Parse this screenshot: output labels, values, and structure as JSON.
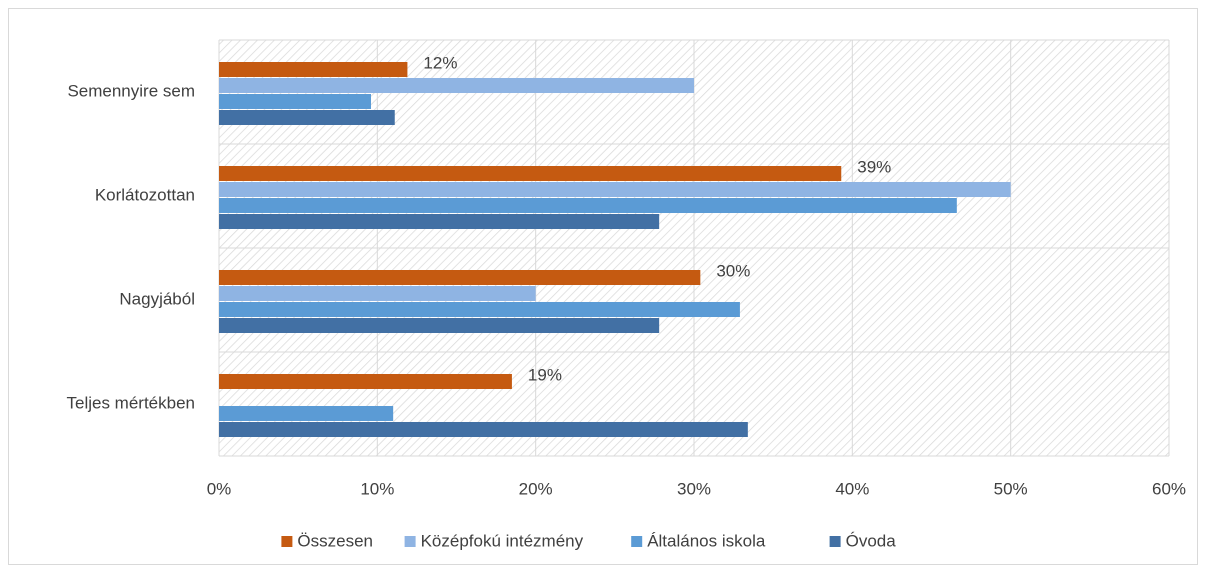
{
  "chart_data": {
    "type": "hbar",
    "categories": [
      "Semennyire sem",
      "Korlátozottan",
      "Nagyjából",
      "Teljes mértékben"
    ],
    "series": [
      {
        "name": "Összesen",
        "color": "#c55a11",
        "values": [
          11.9,
          39.3,
          30.4,
          18.5
        ],
        "value_labels": [
          "12%",
          "39%",
          "30%",
          "19%"
        ]
      },
      {
        "name": "Középfokú intézmény",
        "color": "#8fb4e3",
        "values": [
          30.0,
          50.0,
          20.0,
          0
        ]
      },
      {
        "name": "Általános iskola",
        "color": "#5b9bd5",
        "values": [
          9.6,
          46.6,
          32.9,
          11.0
        ]
      },
      {
        "name": "Óvoda",
        "color": "#4270a4",
        "values": [
          11.1,
          27.8,
          27.8,
          33.4
        ]
      }
    ],
    "xlim": [
      0,
      60
    ],
    "xticks": [
      {
        "value": 0,
        "label": "0%"
      },
      {
        "value": 10,
        "label": "10%"
      },
      {
        "value": 20,
        "label": "20%"
      },
      {
        "value": 30,
        "label": "30%"
      },
      {
        "value": 40,
        "label": "40%"
      },
      {
        "value": 50,
        "label": "50%"
      },
      {
        "value": 60,
        "label": "60%"
      }
    ],
    "grid": true
  }
}
